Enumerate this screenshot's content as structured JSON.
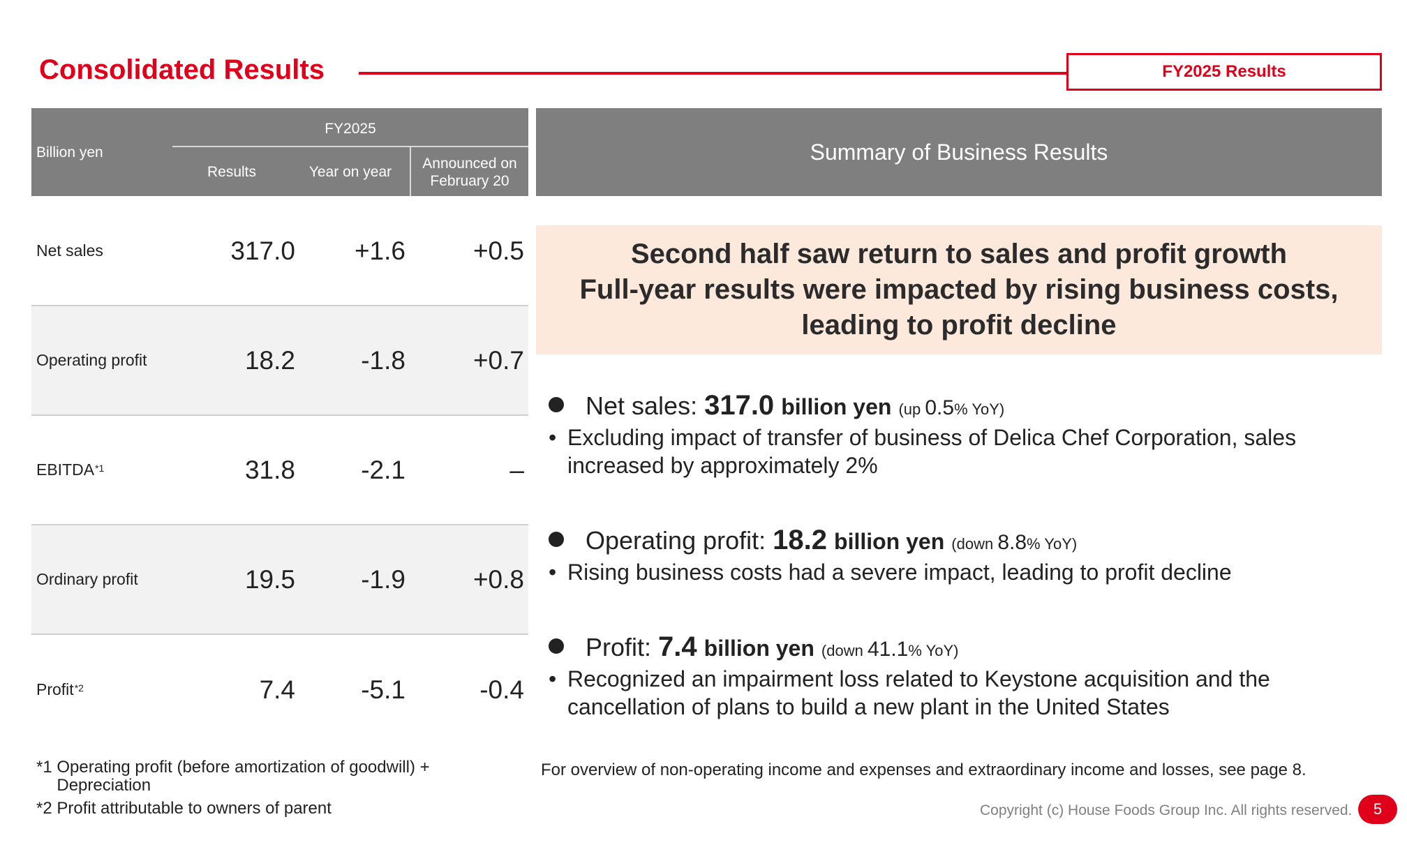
{
  "header": {
    "title": "Consolidated Results",
    "badge": "FY2025 Results"
  },
  "table": {
    "unit_label": "Billion yen",
    "period_label": "FY2025",
    "columns": [
      "Results",
      "Year on year",
      "Announced on February 20"
    ],
    "rows": [
      {
        "label": "Net sales",
        "note": "",
        "results": "317.0",
        "yoy": "+1.6",
        "announced": "+0.5"
      },
      {
        "label": "Operating profit",
        "note": "",
        "results": "18.2",
        "yoy": "-1.8",
        "announced": "+0.7"
      },
      {
        "label": "EBITDA",
        "note": "*1",
        "results": "31.8",
        "yoy": "-2.1",
        "announced": "–"
      },
      {
        "label": "Ordinary profit",
        "note": "",
        "results": "19.5",
        "yoy": "-1.9",
        "announced": "+0.8"
      },
      {
        "label": "Profit",
        "note": "*2",
        "results": "7.4",
        "yoy": "-5.1",
        "announced": "-0.4"
      }
    ],
    "footnotes": [
      {
        "mark": "*1",
        "text": "Operating profit (before amortization of goodwill) + Depreciation"
      },
      {
        "mark": "*2",
        "text": "Profit attributable to owners of parent"
      }
    ]
  },
  "summary": {
    "heading": "Summary of Business Results",
    "highlight_lines": [
      "Second half saw return to sales and profit growth",
      "Full-year results were impacted by rising business costs,",
      "leading to profit decline"
    ],
    "bullets": [
      {
        "label": "Net sales: ",
        "value": "317.0",
        "unit": "billion yen",
        "paren_open": "(up ",
        "pct": "0.5",
        "paren_close": "% YoY)",
        "detail": "Excluding impact of transfer of business of Delica Chef Corporation, sales increased by approximately 2%"
      },
      {
        "label": "Operating profit: ",
        "value": "18.2",
        "unit": "billion yen",
        "paren_open": "(down ",
        "pct": "8.8",
        "paren_close": "% YoY)",
        "detail": "Rising business costs had a severe impact, leading to profit decline"
      },
      {
        "label": "Profit: ",
        "value": "7.4",
        "unit": "billion yen",
        "paren_open": "(down ",
        "pct": "41.1",
        "paren_close": "% YoY)",
        "detail": "Recognized an impairment loss related to Keystone acquisition and the cancellation of plans to build a new plant in the United States"
      }
    ],
    "overview_note": "For overview of non-operating income and expenses and extraordinary income and losses, see page 8."
  },
  "footer": {
    "copyright": "Copyright (c) House Foods Group Inc. All rights reserved.",
    "page_number": "5"
  },
  "colors": {
    "accent_red": "#e0001a",
    "header_gray": "#7f7f7f",
    "highlight_bg": "#fce9dc",
    "alt_row_bg": "#f2f2f2"
  }
}
